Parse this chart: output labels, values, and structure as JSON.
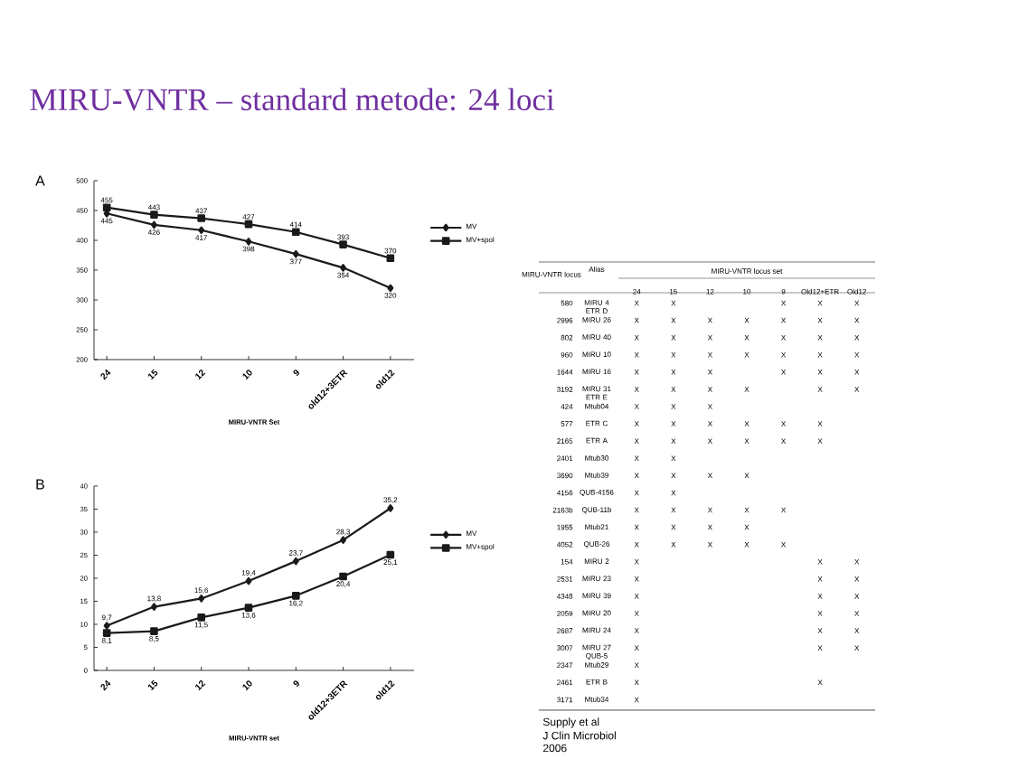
{
  "chart_data": [
    {
      "type": "line",
      "title": "MIRU-VNTR – standard metode: 24 loci",
      "annotations": [
        "A"
      ],
      "categories": [
        "24",
        "15",
        "12",
        "10",
        "9",
        "old12+3ETR",
        "old12"
      ],
      "xlabel": "MIRU-VNTR Set",
      "ylim": [
        200,
        500
      ],
      "yticks": [
        200,
        250,
        300,
        350,
        400,
        450,
        500
      ],
      "legend": "right",
      "data_labels": true,
      "series": [
        {
          "name": "MV",
          "color": "#1a1a1a",
          "marker": "diamond",
          "values": [
            445,
            426,
            417,
            398,
            377,
            354,
            320
          ]
        },
        {
          "name": "MV+spol",
          "color": "#1a1a1a",
          "marker": "square",
          "values": [
            455,
            443,
            437,
            427,
            414,
            393,
            370
          ]
        }
      ]
    },
    {
      "type": "line",
      "annotations": [
        "B"
      ],
      "categories": [
        "24",
        "15",
        "12",
        "10",
        "9",
        "old12+3ETR",
        "old12"
      ],
      "xlabel": "MIRU-VNTR set",
      "ylim": [
        0,
        40
      ],
      "yticks": [
        0,
        5,
        10,
        15,
        20,
        25,
        30,
        35,
        40
      ],
      "legend": "right",
      "series": [
        {
          "name": "MV",
          "color": "#1a1a1a",
          "marker": "diamond",
          "values": [
            9.7,
            13.8,
            15.6,
            19.4,
            23.7,
            28.3,
            35.2
          ],
          "value_labels": [
            "9,7",
            "13,8",
            "15,6",
            "19,4",
            "23,7",
            "28,3",
            "35,2"
          ]
        },
        {
          "name": "MV+spol",
          "color": "#1a1a1a",
          "marker": "square",
          "values": [
            8.1,
            8.5,
            11.5,
            13.6,
            16.2,
            20.4,
            25.1
          ],
          "value_labels": [
            "8,1",
            "8,5",
            "11,5",
            "13,6",
            "16,2",
            "20,4",
            "25,1"
          ]
        }
      ]
    },
    {
      "type": "heatmap",
      "xlabel": "MIRU-VNTR locus set",
      "ylabel": "MIRU-VNTR locus",
      "y2label": "Alias",
      "annotations": [
        "Supply et al",
        "J Clin Microbiol",
        "2006"
      ],
      "categories": [
        "24",
        "15",
        "12",
        "10",
        "9",
        "Old12+ETR",
        "Old12"
      ],
      "y_categories": [
        "580",
        "2996",
        "802",
        "960",
        "1644",
        "3192",
        "424",
        "577",
        "2165",
        "2401",
        "3690",
        "4156",
        "2163b",
        "1955",
        "4052",
        "154",
        "2531",
        "4348",
        "2059",
        "2687",
        "3007",
        "2347",
        "2461",
        "3171"
      ],
      "y2_categories": [
        "MIRU 4 ETR D",
        "MIRU 26",
        "MIRU 40",
        "MIRU 10",
        "MIRU 16",
        "MIRU 31 ETR E",
        "Mtub04",
        "ETR C",
        "ETR A",
        "Mtub30",
        "Mtub39",
        "QUB-4156",
        "QUB-11b",
        "Mtub21",
        "QUB-26",
        "MIRU 2",
        "MIRU 23",
        "MIRU 39",
        "MIRU 20",
        "MIRU 24",
        "MIRU 27 QUB-5",
        "Mtub29",
        "ETR B",
        "Mtub34"
      ],
      "cells": [
        [
          "X",
          "X",
          null,
          null,
          "X",
          "X",
          "X"
        ],
        [
          "X",
          "X",
          "X",
          "X",
          "X",
          "X",
          "X"
        ],
        [
          "X",
          "X",
          "X",
          "X",
          "X",
          "X",
          "X"
        ],
        [
          "X",
          "X",
          "X",
          "X",
          "X",
          "X",
          "X"
        ],
        [
          "X",
          "X",
          "X",
          null,
          "X",
          "X",
          "X"
        ],
        [
          "X",
          "X",
          "X",
          "X",
          null,
          "X",
          "X"
        ],
        [
          "X",
          "X",
          "X",
          null,
          null,
          null,
          null
        ],
        [
          "X",
          "X",
          "X",
          "X",
          "X",
          "X",
          null
        ],
        [
          "X",
          "X",
          "X",
          "X",
          "X",
          "X",
          null
        ],
        [
          "X",
          "X",
          null,
          null,
          null,
          null,
          null
        ],
        [
          "X",
          "X",
          "X",
          "X",
          null,
          null,
          null
        ],
        [
          "X",
          "X",
          null,
          null,
          null,
          null,
          null
        ],
        [
          "X",
          "X",
          "X",
          "X",
          "X",
          null,
          null
        ],
        [
          "X",
          "X",
          "X",
          "X",
          null,
          null,
          null
        ],
        [
          "X",
          "X",
          "X",
          "X",
          "X",
          null,
          null
        ],
        [
          "X",
          null,
          null,
          null,
          null,
          "X",
          "X"
        ],
        [
          "X",
          null,
          null,
          null,
          null,
          "X",
          "X"
        ],
        [
          "X",
          null,
          null,
          null,
          null,
          "X",
          "X"
        ],
        [
          "X",
          null,
          null,
          null,
          null,
          "X",
          "X"
        ],
        [
          "X",
          null,
          null,
          null,
          null,
          "X",
          "X"
        ],
        [
          "X",
          null,
          null,
          null,
          null,
          "X",
          "X"
        ],
        [
          "X",
          null,
          null,
          null,
          null,
          null,
          null
        ],
        [
          "X",
          null,
          null,
          null,
          null,
          "X",
          null
        ],
        [
          "X",
          null,
          null,
          null,
          null,
          null,
          null
        ]
      ]
    }
  ]
}
